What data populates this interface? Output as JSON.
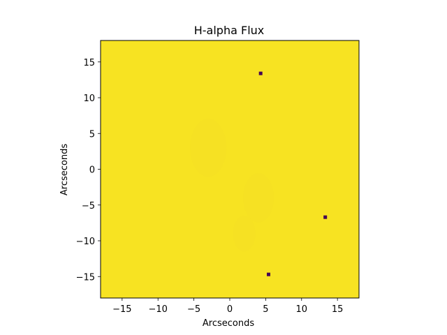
{
  "chart_data": {
    "type": "heatmap",
    "title": "H-alpha Flux",
    "xlabel": "Arcseconds",
    "ylabel": "Arcseconds",
    "xlim": [
      -18,
      18
    ],
    "ylim": [
      -18,
      18
    ],
    "xticks": [
      -15,
      -10,
      -5,
      0,
      5,
      10,
      15
    ],
    "yticks": [
      -15,
      -10,
      -5,
      0,
      5,
      10,
      15
    ],
    "xtick_labels": [
      "−15",
      "−10",
      "−5",
      "0",
      "5",
      "10",
      "15"
    ],
    "ytick_labels": [
      "−15",
      "−10",
      "−5",
      "0",
      "5",
      "10",
      "15"
    ],
    "colormap": "viridis",
    "background_color": "#f7e322",
    "low_value_color": "#440154",
    "low_value_pixels": [
      {
        "x": 4.3,
        "y": 13.4
      },
      {
        "x": 13.3,
        "y": -6.7
      },
      {
        "x": 5.4,
        "y": -14.7
      }
    ],
    "grid": false
  }
}
